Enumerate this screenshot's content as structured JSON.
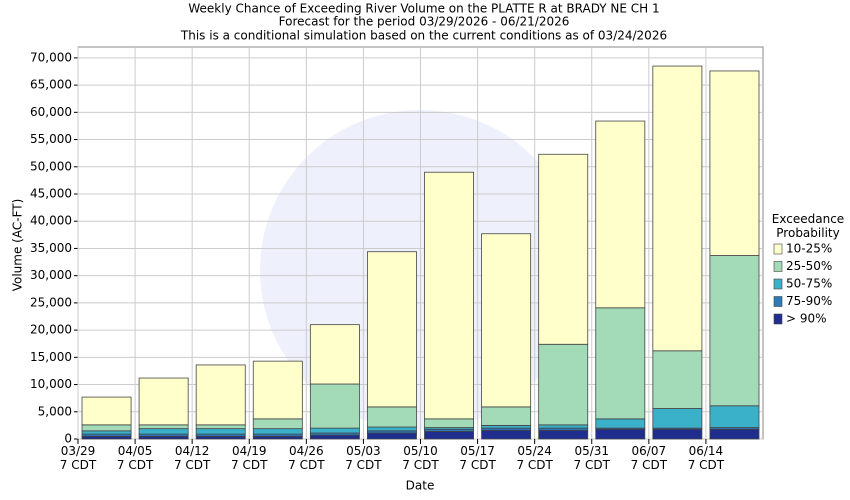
{
  "chart_data": {
    "type": "stacked_bar",
    "title": "Weekly Chance of Exceeding River Volume on the PLATTE R at BRADY NE CH 1",
    "subtitle": "Forecast for the period 03/29/2026 - 06/21/2026",
    "note": "This is a conditional simulation based on the current conditions as of 03/24/2026",
    "xlabel": "Date",
    "ylabel": "Volume (AC-FT)",
    "legend_title": "Exceedance\nProbability",
    "categories": [
      "03/29\n7 CDT",
      "04/05\n7 CDT",
      "04/12\n7 CDT",
      "04/19\n7 CDT",
      "04/26\n7 CDT",
      "05/03\n7 CDT",
      "05/10\n7 CDT",
      "05/17\n7 CDT",
      "05/24\n7 CDT",
      "05/31\n7 CDT",
      "06/07\n7 CDT",
      "06/14\n7 CDT"
    ],
    "series": [
      {
        "name": "> 90%",
        "color": "#1f2d8f",
        "values": [
          500,
          500,
          500,
          500,
          700,
          1100,
          1400,
          1600,
          1600,
          1800,
          1800,
          1800
        ]
      },
      {
        "name": "75-90%",
        "color": "#2b7bba",
        "values": [
          400,
          400,
          400,
          400,
          400,
          400,
          400,
          400,
          400,
          200,
          200,
          300
        ]
      },
      {
        "name": "50-75%",
        "color": "#3bb0c9",
        "values": [
          600,
          1000,
          1000,
          1000,
          900,
          700,
          300,
          500,
          600,
          1700,
          3600,
          4000
        ]
      },
      {
        "name": "25-50%",
        "color": "#a3dab8",
        "values": [
          1100,
          700,
          700,
          1800,
          8100,
          3700,
          1600,
          3400,
          14800,
          20400,
          10600,
          27600
        ]
      },
      {
        "name": "10-25%",
        "color": "#ffffcc",
        "values": [
          5100,
          8600,
          11000,
          10600,
          10900,
          28500,
          45300,
          31800,
          34900,
          34300,
          52300,
          33900
        ]
      }
    ],
    "ylim": [
      0,
      72000
    ],
    "yticks": [
      0,
      {
        "value": 5000,
        "label": "5,000"
      },
      {
        "value": 10000,
        "label": "10,000"
      },
      {
        "value": 15000,
        "label": "15,000"
      },
      {
        "value": 20000,
        "label": "20,000"
      },
      {
        "value": 25000,
        "label": "25,000"
      },
      {
        "value": 30000,
        "label": "30,000"
      },
      {
        "value": 35000,
        "label": "35,000"
      },
      {
        "value": 40000,
        "label": "40,000"
      },
      {
        "value": 45000,
        "label": "45,000"
      },
      {
        "value": 50000,
        "label": "50,000"
      },
      {
        "value": 55000,
        "label": "55,000"
      },
      {
        "value": 60000,
        "label": "60,000"
      },
      {
        "value": 65000,
        "label": "65,000"
      },
      {
        "value": 70000,
        "label": "70,000"
      }
    ],
    "grid": true
  }
}
